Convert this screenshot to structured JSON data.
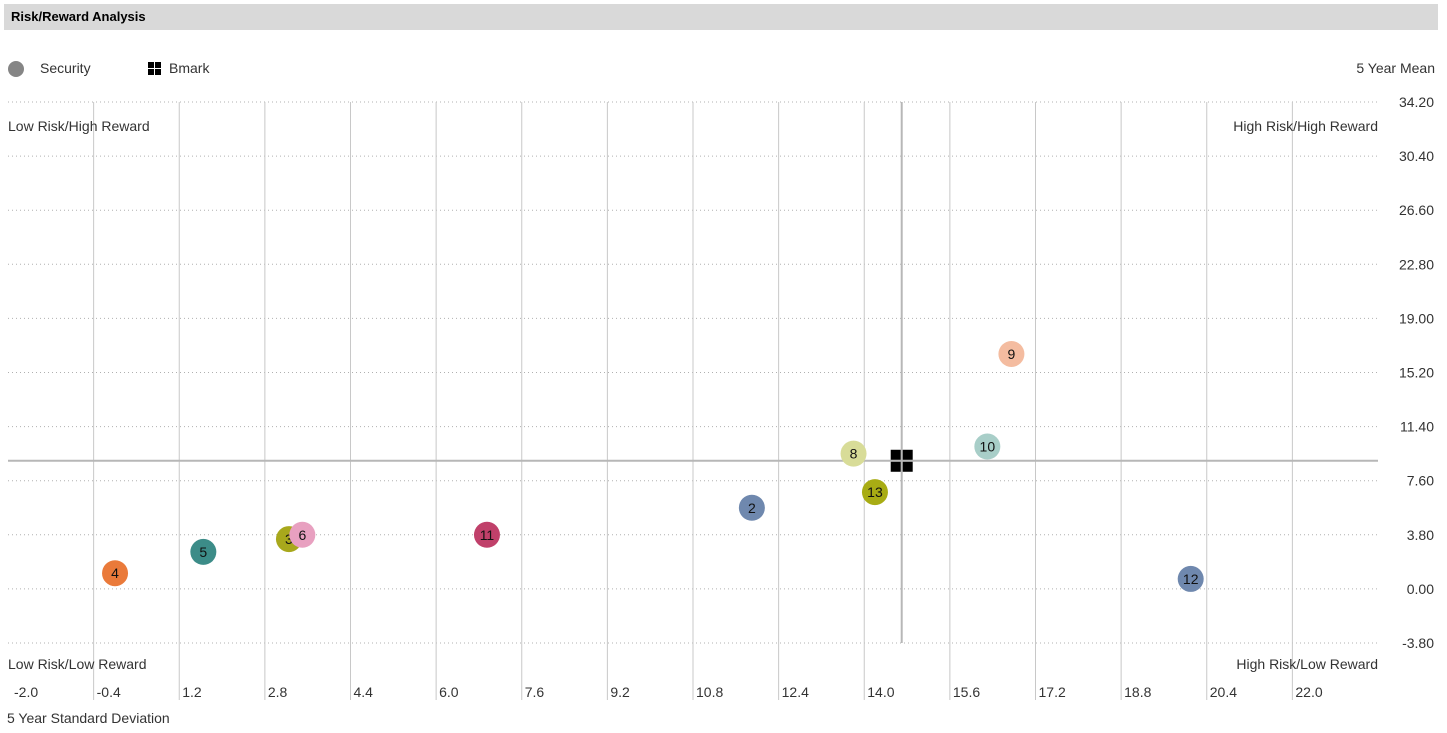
{
  "header": {
    "title": "Risk/Reward Analysis"
  },
  "legend": {
    "security_label": "Security",
    "bmark_label": "Bmark"
  },
  "quadrants": {
    "top_left": "Low Risk/High Reward",
    "top_right": "High Risk/High Reward",
    "bottom_left": "Low Risk/Low Reward",
    "bottom_right": "High Risk/Low Reward"
  },
  "colors": {
    "grid": "#c8c8c8",
    "dotted": "#b0b0b0",
    "crosshair": "#b7b7b7",
    "header_bg": "#d9d9d9"
  },
  "chart_data": {
    "type": "scatter",
    "title": "Risk/Reward Analysis",
    "xlabel": "5 Year Standard Deviation",
    "ylabel": "5 Year Mean",
    "xlim": [
      -2.0,
      23.6
    ],
    "ylim": [
      -3.8,
      34.2
    ],
    "x_ticks": [
      "-2.0",
      "-0.4",
      "1.2",
      "2.8",
      "4.4",
      "6.0",
      "7.6",
      "9.2",
      "10.8",
      "12.4",
      "14.0",
      "15.6",
      "17.2",
      "18.8",
      "20.4",
      "22.0"
    ],
    "y_ticks": [
      "34.20",
      "30.40",
      "26.60",
      "22.80",
      "19.00",
      "15.20",
      "11.40",
      "7.60",
      "3.80",
      "0.00",
      "-3.80"
    ],
    "grid": true,
    "legend_position": "top-left",
    "benchmark": {
      "name": "Bmark",
      "x": 14.7,
      "y": 9.0
    },
    "series": [
      {
        "name": "Security",
        "points": [
          {
            "label": "4",
            "x": 0.0,
            "y": 1.1,
            "color": "#ea7a3a"
          },
          {
            "label": "5",
            "x": 1.65,
            "y": 2.6,
            "color": "#3c8c88"
          },
          {
            "label": "3",
            "x": 3.25,
            "y": 3.5,
            "color": "#a8a81c"
          },
          {
            "label": "6",
            "x": 3.5,
            "y": 3.8,
            "color": "#e8a0c0"
          },
          {
            "label": "11",
            "x": 6.95,
            "y": 3.8,
            "color": "#c0406a"
          },
          {
            "label": "2",
            "x": 11.9,
            "y": 5.7,
            "color": "#6f88ae"
          },
          {
            "label": "8",
            "x": 13.8,
            "y": 9.5,
            "color": "#d8dc98"
          },
          {
            "label": "13",
            "x": 14.2,
            "y": 6.8,
            "color": "#a8ac14"
          },
          {
            "label": "10",
            "x": 16.3,
            "y": 10.0,
            "color": "#a8cec8"
          },
          {
            "label": "9",
            "x": 16.75,
            "y": 16.5,
            "color": "#f4bca0"
          },
          {
            "label": "12",
            "x": 20.1,
            "y": 0.7,
            "color": "#6f88ae"
          }
        ]
      }
    ]
  }
}
